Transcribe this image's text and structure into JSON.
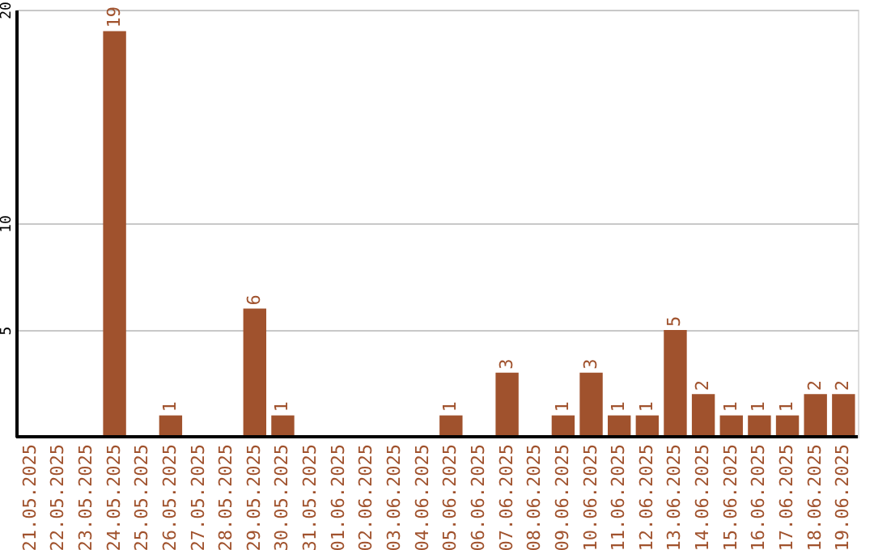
{
  "chart_data": {
    "type": "bar",
    "categories": [
      "21.05.2025",
      "22.05.2025",
      "23.05.2025",
      "24.05.2025",
      "25.05.2025",
      "26.05.2025",
      "27.05.2025",
      "28.05.2025",
      "29.05.2025",
      "30.05.2025",
      "31.05.2025",
      "01.06.2025",
      "02.06.2025",
      "03.06.2025",
      "04.06.2025",
      "05.06.2025",
      "06.06.2025",
      "07.06.2025",
      "08.06.2025",
      "09.06.2025",
      "10.06.2025",
      "11.06.2025",
      "12.06.2025",
      "13.06.2025",
      "14.06.2025",
      "15.06.2025",
      "16.06.2025",
      "17.06.2025",
      "18.06.2025",
      "19.06.2025"
    ],
    "values": [
      0,
      0,
      0,
      19,
      0,
      1,
      0,
      0,
      6,
      1,
      0,
      0,
      0,
      0,
      0,
      1,
      0,
      3,
      0,
      1,
      3,
      1,
      1,
      5,
      2,
      1,
      1,
      1,
      2,
      2
    ],
    "value_labels": [
      null,
      null,
      null,
      "19",
      null,
      "1",
      null,
      null,
      "6",
      "1",
      null,
      null,
      null,
      null,
      null,
      "1",
      null,
      "3",
      null,
      "1",
      "3",
      "1",
      "1",
      "5",
      "2",
      "1",
      "1",
      "1",
      "2",
      "2"
    ],
    "color": "#a0522d",
    "ylim": [
      0,
      20
    ],
    "yticks": [
      5,
      10,
      20
    ],
    "grid": "y"
  }
}
